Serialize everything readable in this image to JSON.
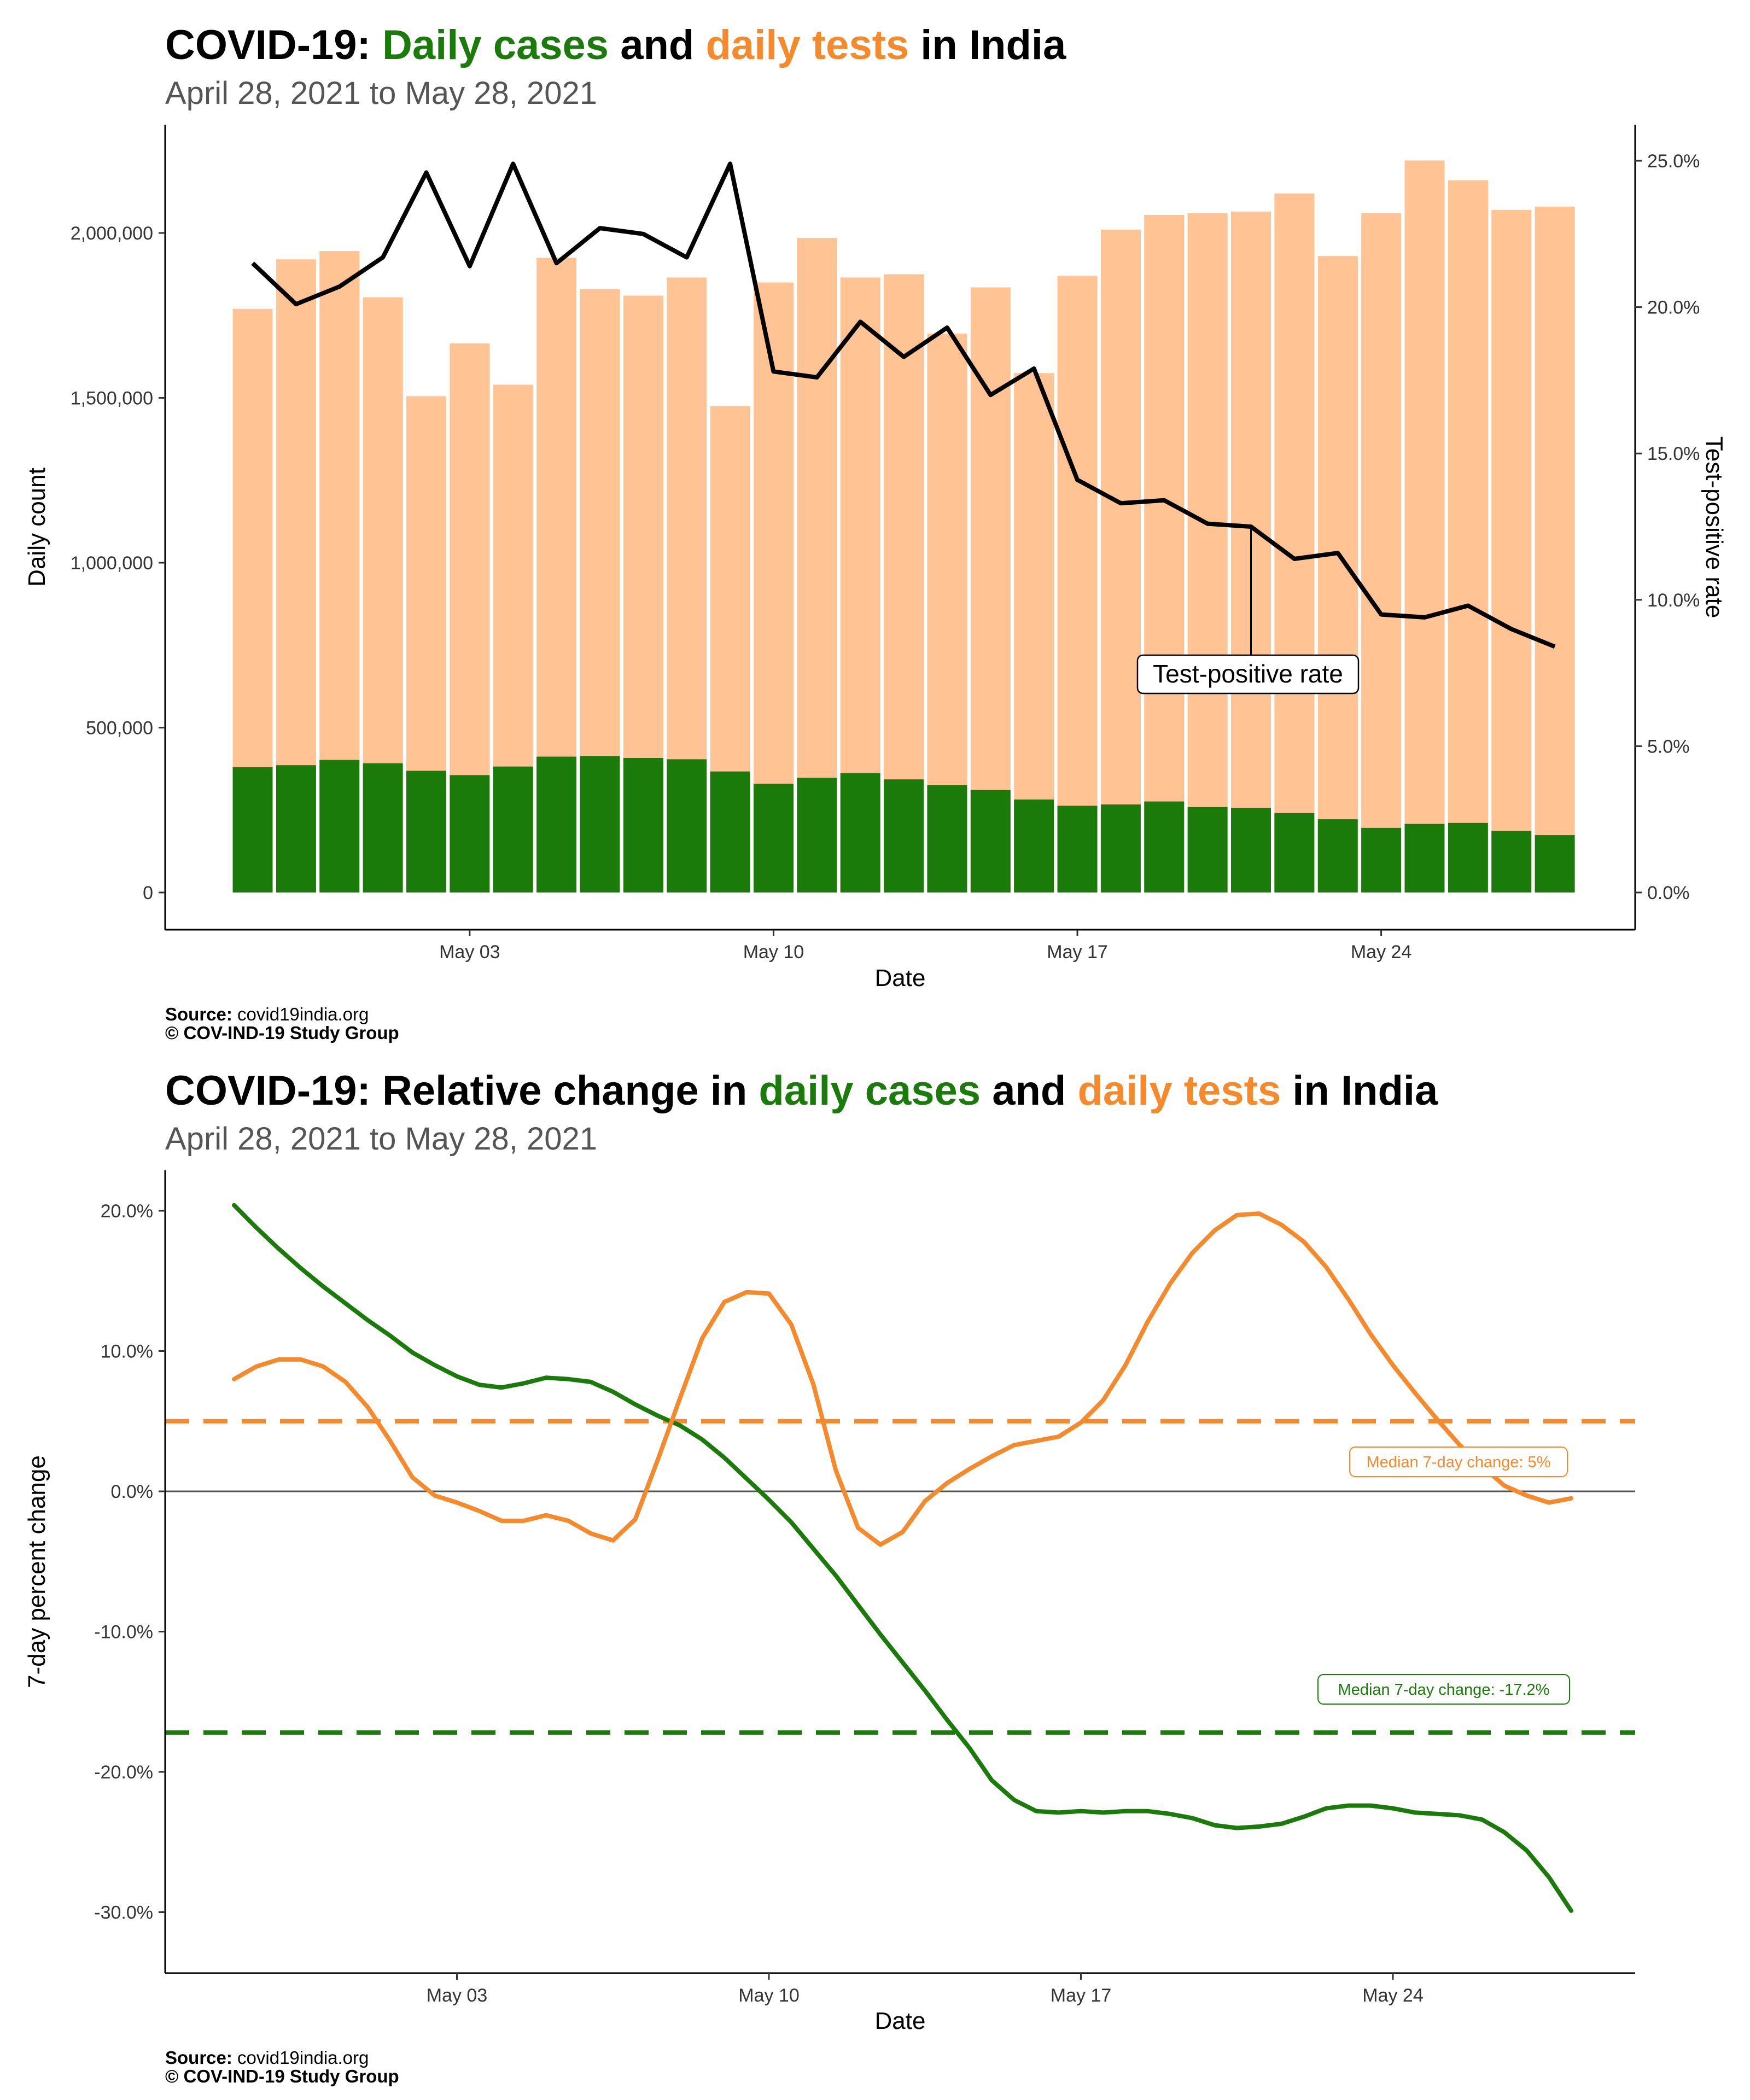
{
  "colors": {
    "cases": "#1a7a0a",
    "tests": "#ffc394",
    "tests_line": "#f58a2c",
    "tpr": "#000000",
    "zero_line": "#555555"
  },
  "chart_data": [
    {
      "type": "bar",
      "title": {
        "prefix": "COVID-19: ",
        "cases_part": "Daily cases",
        "mid": " and ",
        "tests_part": "daily tests",
        "suffix": " in India"
      },
      "subtitle": "April 28, 2021 to May 28, 2021",
      "xlabel": "Date",
      "ylabel": "Daily count",
      "ylabel_right": "Test-positive rate",
      "ylim": [
        0,
        2300000
      ],
      "ylim_right": [
        0,
        0.262
      ],
      "yticks": [
        0,
        500000,
        1000000,
        1500000,
        2000000
      ],
      "ytick_labels": [
        "0",
        "500,000",
        "1,000,000",
        "1,500,000",
        "2,000,000"
      ],
      "yticks_right": [
        0,
        0.05,
        0.1,
        0.15,
        0.2,
        0.25
      ],
      "ytick_labels_right": [
        "0.0%",
        "5.0%",
        "10.0%",
        "15.0%",
        "20.0%",
        "25.0%"
      ],
      "xticks": [
        "2021-05-03",
        "2021-05-10",
        "2021-05-17",
        "2021-05-24"
      ],
      "xtick_labels": [
        "May 03",
        "May 10",
        "May 17",
        "May 24"
      ],
      "grid": false,
      "dates": [
        "2021-04-28",
        "2021-04-29",
        "2021-04-30",
        "2021-05-01",
        "2021-05-02",
        "2021-05-03",
        "2021-05-04",
        "2021-05-05",
        "2021-05-06",
        "2021-05-07",
        "2021-05-08",
        "2021-05-09",
        "2021-05-10",
        "2021-05-11",
        "2021-05-12",
        "2021-05-13",
        "2021-05-14",
        "2021-05-15",
        "2021-05-16",
        "2021-05-17",
        "2021-05-18",
        "2021-05-19",
        "2021-05-20",
        "2021-05-21",
        "2021-05-22",
        "2021-05-23",
        "2021-05-24",
        "2021-05-25",
        "2021-05-26",
        "2021-05-27",
        "2021-05-28"
      ],
      "series": [
        {
          "key": "tests",
          "values": [
            1770000,
            1920000,
            1945000,
            1805000,
            1505000,
            1665000,
            1540000,
            1925000,
            1830000,
            1810000,
            1865000,
            1475000,
            1850000,
            1985000,
            1865000,
            1875000,
            1695000,
            1835000,
            1575000,
            1870000,
            2010000,
            2055000,
            2060000,
            2065000,
            2120000,
            1930000,
            2060000,
            2220000,
            2160000,
            2070000,
            2080000
          ]
        },
        {
          "key": "cases",
          "values": [
            380000,
            386000,
            402000,
            392000,
            369000,
            356000,
            382000,
            412000,
            414000,
            408000,
            404000,
            367000,
            330000,
            348000,
            362000,
            343000,
            326000,
            311000,
            282000,
            263000,
            267000,
            276000,
            259000,
            257000,
            241000,
            222000,
            196000,
            208000,
            211000,
            187000,
            174000
          ]
        },
        {
          "key": "tpr",
          "values": [
            0.215,
            0.201,
            0.207,
            0.217,
            0.246,
            0.214,
            0.249,
            0.215,
            0.227,
            0.225,
            0.217,
            0.249,
            0.178,
            0.176,
            0.195,
            0.183,
            0.193,
            0.17,
            0.179,
            0.141,
            0.133,
            0.134,
            0.126,
            0.125,
            0.114,
            0.116,
            0.095,
            0.094,
            0.098,
            0.09,
            0.084
          ]
        }
      ],
      "annotation": {
        "label": "Test-positive rate",
        "date": "2021-05-21",
        "value": 0.125
      },
      "source_label": "Source:",
      "source_value": " covid19india.org",
      "copyright": "© COV-IND-19 Study Group"
    },
    {
      "type": "line",
      "title": {
        "prefix": "COVID-19: Relative change in ",
        "cases_part": "daily cases",
        "mid": " and ",
        "tests_part": "daily tests",
        "suffix": " in India"
      },
      "subtitle": "April 28, 2021 to May 28, 2021",
      "xlabel": "Date",
      "ylabel": "7-day percent change",
      "ylim": [
        -31.5,
        21.5
      ],
      "yticks": [
        -30,
        -20,
        -10,
        0,
        10,
        20
      ],
      "ytick_labels": [
        "-30.0%",
        "-20.0%",
        "-10.0%",
        "0.0%",
        "10.0%",
        "20.0%"
      ],
      "xticks": [
        "2021-05-03",
        "2021-05-10",
        "2021-05-17",
        "2021-05-24"
      ],
      "xtick_labels": [
        "May 03",
        "May 10",
        "May 17",
        "May 24"
      ],
      "grid": false,
      "x": [
        0,
        0.5,
        1,
        1.5,
        2,
        2.5,
        3,
        3.5,
        4,
        4.5,
        5,
        5.5,
        6,
        6.5,
        7,
        7.5,
        8,
        8.5,
        9,
        9.5,
        10,
        10.5,
        11,
        11.5,
        12,
        12.5,
        13,
        13.5,
        14,
        14.5,
        15,
        15.5,
        16,
        16.5,
        17,
        17.5,
        18,
        18.5,
        19,
        19.5,
        20,
        20.5,
        21,
        21.5,
        22,
        22.5,
        23,
        23.5,
        24,
        24.5,
        25,
        25.5,
        26,
        26.5,
        27,
        27.5,
        28,
        28.5,
        29,
        29.5,
        30
      ],
      "series": [
        {
          "key": "cases",
          "values": [
            20.4,
            18.8,
            17.3,
            15.9,
            14.6,
            13.4,
            12.2,
            11.1,
            9.9,
            9.0,
            8.2,
            7.6,
            7.4,
            7.7,
            8.1,
            8.0,
            7.8,
            7.1,
            6.2,
            5.4,
            4.7,
            3.7,
            2.4,
            0.9,
            -0.6,
            -2.2,
            -4.1,
            -6.0,
            -8.1,
            -10.2,
            -12.2,
            -14.2,
            -16.3,
            -18.3,
            -20.6,
            -22.0,
            -22.8,
            -22.9,
            -22.8,
            -22.9,
            -22.8,
            -22.8,
            -23.0,
            -23.3,
            -23.8,
            -24.0,
            -23.9,
            -23.7,
            -23.2,
            -22.6,
            -22.4,
            -22.4,
            -22.6,
            -22.9,
            -23.0,
            -23.1,
            -23.4,
            -24.3,
            -25.6,
            -27.5,
            -29.9
          ]
        },
        {
          "key": "tests",
          "values": [
            8.0,
            8.9,
            9.4,
            9.4,
            8.9,
            7.8,
            6.0,
            3.6,
            1.0,
            -0.3,
            -0.8,
            -1.4,
            -2.1,
            -2.1,
            -1.7,
            -2.1,
            -3.0,
            -3.5,
            -2.0,
            2.2,
            6.6,
            10.9,
            13.5,
            14.2,
            14.1,
            11.9,
            7.6,
            1.5,
            -2.6,
            -3.8,
            -2.9,
            -0.7,
            0.6,
            1.6,
            2.5,
            3.3,
            3.6,
            3.9,
            4.9,
            6.5,
            9.0,
            12.1,
            14.8,
            17.0,
            18.6,
            19.7,
            19.8,
            19.0,
            17.8,
            16.0,
            13.7,
            11.2,
            9.0,
            7.0,
            5.1,
            3.3,
            1.8,
            0.4,
            -0.3,
            -0.8,
            -0.5
          ]
        }
      ],
      "medians": [
        {
          "key": "tests",
          "value": 5.0,
          "label": "Median 7-day change: 5%"
        },
        {
          "key": "cases",
          "value": -17.2,
          "label": "Median 7-day change: -17.2%"
        }
      ],
      "source_label": "Source:",
      "source_value": " covid19india.org",
      "copyright": "© COV-IND-19 Study Group"
    }
  ]
}
